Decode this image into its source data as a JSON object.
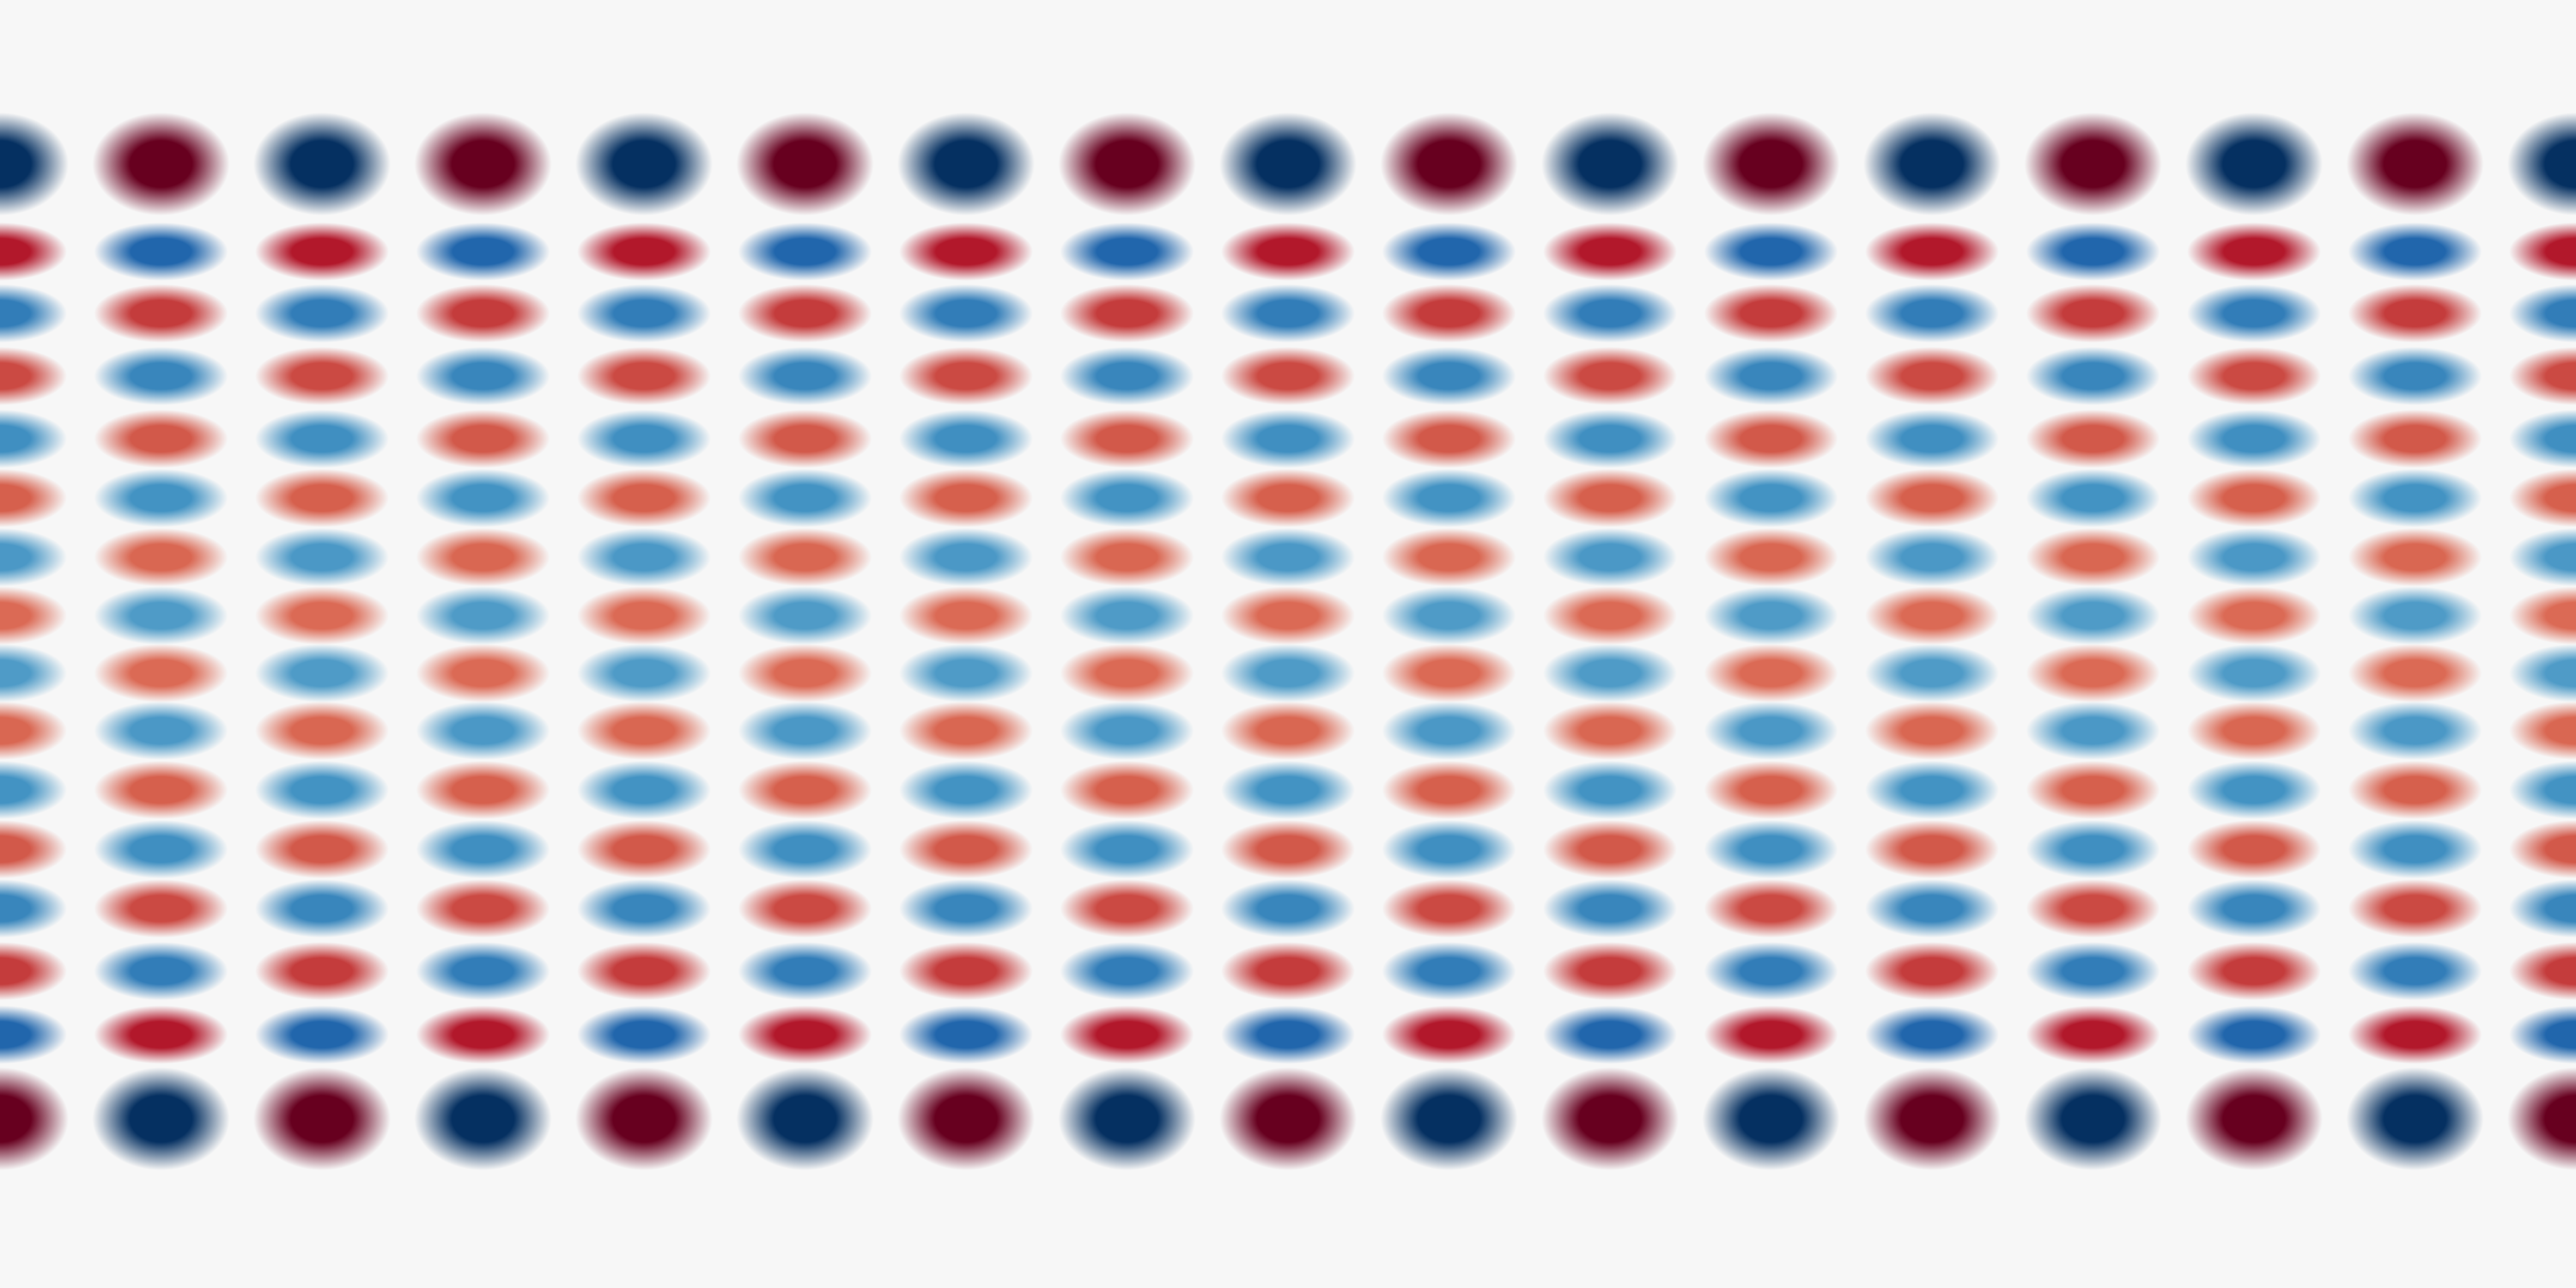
{
  "colors": {
    "background": "#f7f7f7",
    "red": [
      "#fddbc7",
      "#f4a582",
      "#d6604d",
      "#b2182b",
      "#67001f"
    ],
    "blue": [
      "#d1e5f0",
      "#92c5de",
      "#4393c3",
      "#2166ac",
      "#053061"
    ]
  }
}
